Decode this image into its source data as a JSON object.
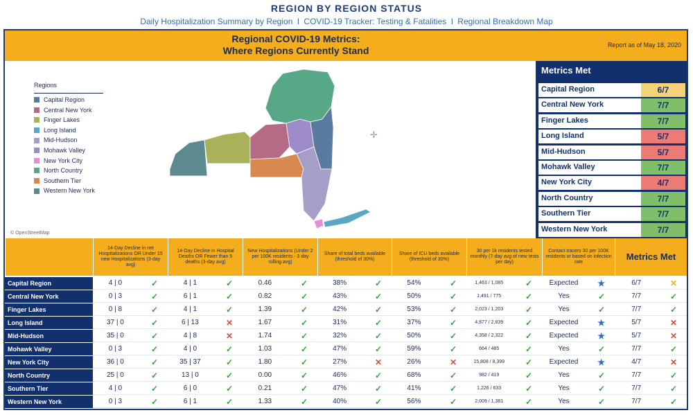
{
  "header": {
    "title": "REGION BY REGION STATUS",
    "links": [
      "Daily Hospitalization Summary by Region",
      "COVID-19 Tracker: Testing & Fatalities",
      "Regional Breakdown Map"
    ],
    "separator": "I"
  },
  "banner": {
    "title_line1": "Regional COVID-19 Metrics:",
    "title_line2": "Where Regions Currently Stand",
    "report_date": "Report as of May 18, 2020"
  },
  "map": {
    "legend_title": "Regions",
    "legend": [
      {
        "label": "Capital Region",
        "color": "#5b7aa0"
      },
      {
        "label": "Central New York",
        "color": "#b56a86"
      },
      {
        "label": "Finger Lakes",
        "color": "#a9b25a"
      },
      {
        "label": "Long Island",
        "color": "#5aa6c3"
      },
      {
        "label": "Mid-Hudson",
        "color": "#a59ec8"
      },
      {
        "label": "Mohawk Valley",
        "color": "#9c8bc6"
      },
      {
        "label": "New York City",
        "color": "#e58fd4"
      },
      {
        "label": "North Country",
        "color": "#56a887"
      },
      {
        "label": "Southern Tier",
        "color": "#d8894f"
      },
      {
        "label": "Western New York",
        "color": "#5d8991"
      }
    ],
    "credit": "© OpenStreetMap"
  },
  "metrics_panel": {
    "title": "Metrics Met",
    "rows": [
      {
        "region": "Capital Region",
        "value": "6/7",
        "color": "#f3d27a"
      },
      {
        "region": "Central New York",
        "value": "7/7",
        "color": "#7fbf6a"
      },
      {
        "region": "Finger Lakes",
        "value": "7/7",
        "color": "#7fbf6a"
      },
      {
        "region": "Long Island",
        "value": "5/7",
        "color": "#eb7b74"
      },
      {
        "region": "Mid-Hudson",
        "value": "5/7",
        "color": "#eb7b74"
      },
      {
        "region": "Mohawk Valley",
        "value": "7/7",
        "color": "#7fbf6a"
      },
      {
        "region": "New York City",
        "value": "4/7",
        "color": "#eb7b74"
      },
      {
        "region": "North Country",
        "value": "7/7",
        "color": "#7fbf6a"
      },
      {
        "region": "Southern Tier",
        "value": "7/7",
        "color": "#7fbf6a"
      },
      {
        "region": "Western New York",
        "value": "7/7",
        "color": "#7fbf6a"
      }
    ]
  },
  "table": {
    "headers": [
      "14-Day Decline in net Hospitalizations OR Under 15 new Hospitalizations (3-day avg)",
      "14-Day Decline in Hospital Deaths OR Fewer than 5 deaths (3-day avg)",
      "New Hospitalizations (Under 2 per 100K residents - 3 day rolling avg)",
      "Share of total beds available (threshold of 30%)",
      "Share of ICU beds available (threshold of 30%)",
      "30 per 1k residents tested monthly (7-day avg of new tests per day)",
      "Contact tracers 30 per 100K residents or based on infection rate",
      "Metrics Met"
    ],
    "rows": [
      {
        "region": "Capital Region",
        "cells": [
          [
            "4 | 0",
            "ok"
          ],
          [
            "4 | 1",
            "ok"
          ],
          [
            "0.46",
            "ok"
          ],
          [
            "38%",
            "ok"
          ],
          [
            "54%",
            "ok"
          ],
          [
            "1,463 / 1,085",
            "ok"
          ],
          [
            "Expected",
            "star"
          ],
          [
            "6/7",
            "warn"
          ]
        ]
      },
      {
        "region": "Central New York",
        "cells": [
          [
            "0 | 3",
            "ok"
          ],
          [
            "6 | 1",
            "ok"
          ],
          [
            "0.82",
            "ok"
          ],
          [
            "43%",
            "ok"
          ],
          [
            "50%",
            "ok"
          ],
          [
            "1,491 / 775",
            "ok"
          ],
          [
            "Yes",
            "ok"
          ],
          [
            "7/7",
            "ok"
          ]
        ]
      },
      {
        "region": "Finger Lakes",
        "cells": [
          [
            "0 | 8",
            "ok"
          ],
          [
            "4 | 1",
            "ok"
          ],
          [
            "1.39",
            "ok"
          ],
          [
            "42%",
            "ok"
          ],
          [
            "53%",
            "ok"
          ],
          [
            "2,023 / 1,203",
            "ok"
          ],
          [
            "Yes",
            "ok"
          ],
          [
            "7/7",
            "ok"
          ]
        ]
      },
      {
        "region": "Long Island",
        "cells": [
          [
            "37 | 0",
            "ok"
          ],
          [
            "6 | 13",
            "bad"
          ],
          [
            "1.67",
            "ok"
          ],
          [
            "31%",
            "ok"
          ],
          [
            "37%",
            "ok"
          ],
          [
            "4,877 / 2,839",
            "ok"
          ],
          [
            "Expected",
            "star"
          ],
          [
            "5/7",
            "bad"
          ]
        ]
      },
      {
        "region": "Mid-Hudson",
        "cells": [
          [
            "35 | 0",
            "ok"
          ],
          [
            "4 | 8",
            "bad"
          ],
          [
            "1.74",
            "ok"
          ],
          [
            "32%",
            "ok"
          ],
          [
            "50%",
            "ok"
          ],
          [
            "4,358 / 2,322",
            "ok"
          ],
          [
            "Expected",
            "star"
          ],
          [
            "5/7",
            "bad"
          ]
        ]
      },
      {
        "region": "Mohawk Valley",
        "cells": [
          [
            "0 | 3",
            "ok"
          ],
          [
            "4 | 0",
            "ok"
          ],
          [
            "1.03",
            "ok"
          ],
          [
            "47%",
            "ok"
          ],
          [
            "59%",
            "ok"
          ],
          [
            "664 / 485",
            "ok"
          ],
          [
            "Yes",
            "ok"
          ],
          [
            "7/7",
            "ok"
          ]
        ]
      },
      {
        "region": "New York City",
        "cells": [
          [
            "36 | 0",
            "ok"
          ],
          [
            "35 | 37",
            "ok"
          ],
          [
            "1.80",
            "ok"
          ],
          [
            "27%",
            "bad"
          ],
          [
            "26%",
            "bad"
          ],
          [
            "15,808 / 8,399",
            "ok"
          ],
          [
            "Expected",
            "star"
          ],
          [
            "4/7",
            "bad"
          ]
        ]
      },
      {
        "region": "North Country",
        "cells": [
          [
            "25 | 0",
            "ok"
          ],
          [
            "13 | 0",
            "ok"
          ],
          [
            "0.00",
            "ok"
          ],
          [
            "46%",
            "ok"
          ],
          [
            "68%",
            "ok"
          ],
          [
            "982 / 419",
            "ok"
          ],
          [
            "Yes",
            "ok"
          ],
          [
            "7/7",
            "ok"
          ]
        ]
      },
      {
        "region": "Southern Tier",
        "cells": [
          [
            "4 | 0",
            "ok"
          ],
          [
            "6 | 0",
            "ok"
          ],
          [
            "0.21",
            "ok"
          ],
          [
            "47%",
            "ok"
          ],
          [
            "41%",
            "ok"
          ],
          [
            "1,226 / 633",
            "ok"
          ],
          [
            "Yes",
            "ok"
          ],
          [
            "7/7",
            "ok"
          ]
        ]
      },
      {
        "region": "Western New York",
        "cells": [
          [
            "0 | 3",
            "ok"
          ],
          [
            "6 | 1",
            "ok"
          ],
          [
            "1.33",
            "ok"
          ],
          [
            "40%",
            "ok"
          ],
          [
            "56%",
            "ok"
          ],
          [
            "2,009 / 1,381",
            "ok"
          ],
          [
            "Yes",
            "ok"
          ],
          [
            "7/7",
            "ok"
          ]
        ]
      }
    ]
  }
}
